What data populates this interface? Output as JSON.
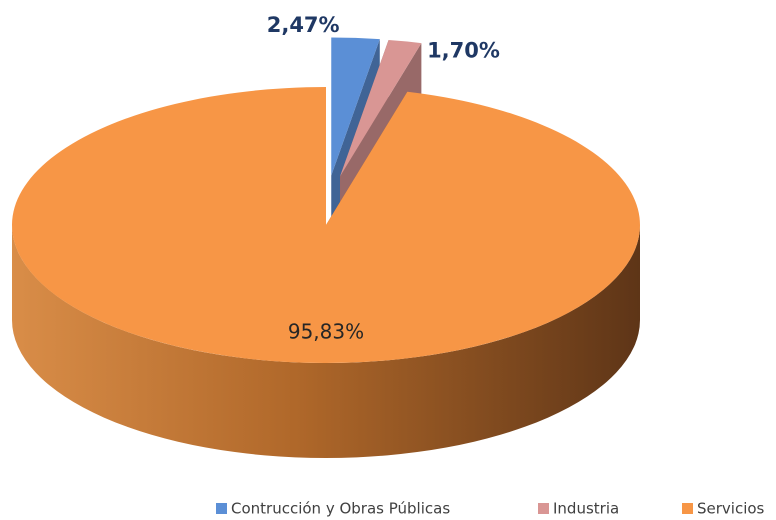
{
  "chart_data": {
    "type": "pie",
    "categories": [
      "Contrucción y Obras Públicas",
      "Industria",
      "Servicios"
    ],
    "values": [
      2.47,
      1.7,
      95.83
    ],
    "value_labels": [
      "2,47%",
      "1,70%",
      "95,83%"
    ],
    "colors": [
      "#5b8fd6",
      "#d99694",
      "#f79646"
    ],
    "legend": "bottom"
  }
}
